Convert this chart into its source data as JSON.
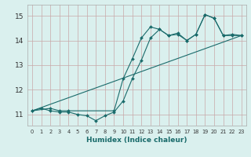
{
  "title": "",
  "xlabel": "Humidex (Indice chaleur)",
  "xlim": [
    -0.5,
    23.5
  ],
  "ylim": [
    10.55,
    15.45
  ],
  "yticks": [
    11,
    12,
    13,
    14,
    15
  ],
  "xticks": [
    0,
    1,
    2,
    3,
    4,
    5,
    6,
    7,
    8,
    9,
    10,
    11,
    12,
    13,
    14,
    15,
    16,
    17,
    18,
    19,
    20,
    21,
    22,
    23
  ],
  "bg_color": "#daf0ee",
  "grid_color": "#c8a8a8",
  "line_color": "#1a6b6b",
  "lines": [
    {
      "x": [
        0,
        1,
        2,
        3,
        4,
        5,
        6,
        7,
        8,
        9,
        10,
        11,
        12,
        13,
        14,
        15,
        16,
        17,
        18,
        19,
        20,
        21,
        22,
        23
      ],
      "y": [
        11.15,
        11.25,
        11.15,
        11.1,
        11.1,
        11.0,
        10.95,
        10.75,
        10.95,
        11.1,
        11.55,
        12.45,
        13.2,
        14.1,
        14.45,
        14.2,
        14.25,
        14.0,
        14.25,
        15.05,
        14.9,
        14.2,
        14.2,
        14.2
      ],
      "marker": true
    },
    {
      "x": [
        0,
        2,
        3,
        4,
        9,
        10,
        11,
        12,
        13,
        14,
        15,
        16,
        17,
        18,
        19,
        20,
        21,
        22,
        23
      ],
      "y": [
        11.15,
        11.25,
        11.15,
        11.15,
        11.15,
        12.45,
        13.25,
        14.1,
        14.55,
        14.45,
        14.2,
        14.3,
        14.0,
        14.25,
        15.05,
        14.9,
        14.2,
        14.25,
        14.2
      ],
      "marker": true
    },
    {
      "x": [
        0,
        23
      ],
      "y": [
        11.15,
        14.2
      ],
      "marker": false
    }
  ]
}
